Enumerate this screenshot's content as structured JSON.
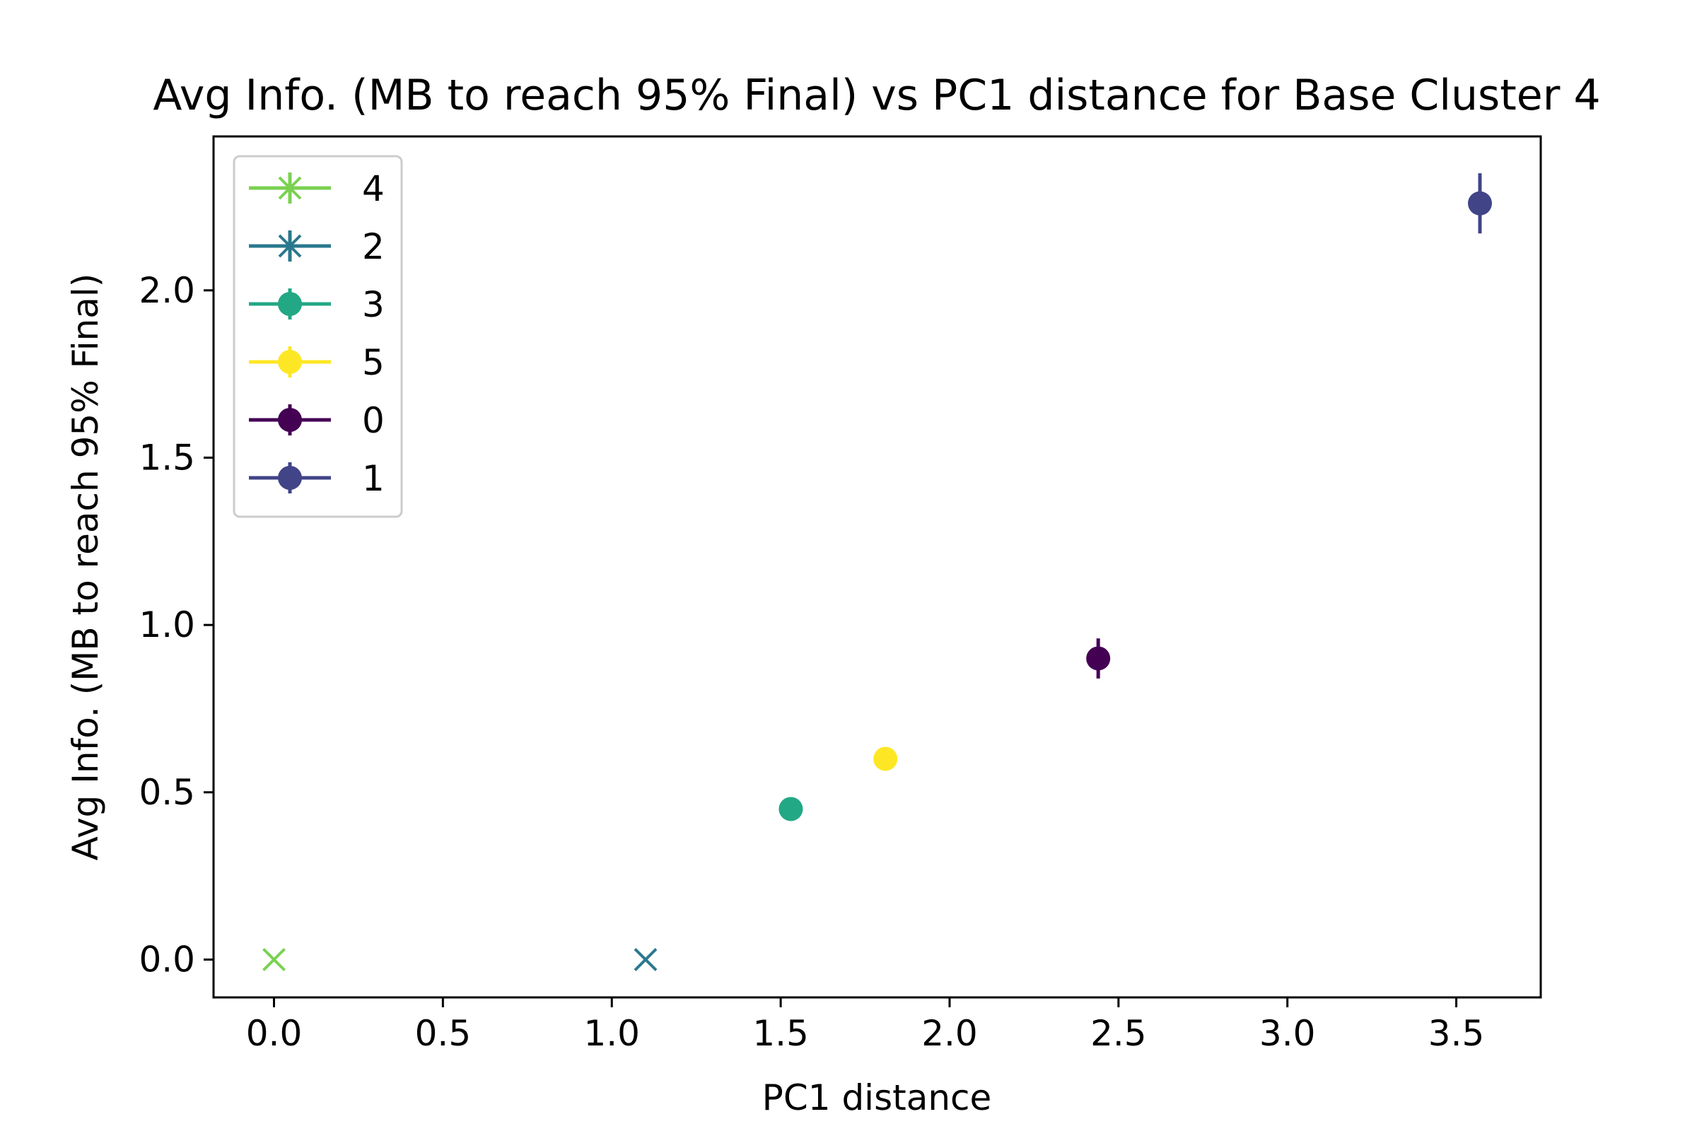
{
  "chart_data": {
    "type": "scatter",
    "title": "Avg Info. (MB to reach 95% Final) vs PC1 distance for Base Cluster 4",
    "xlabel": "PC1 distance",
    "ylabel": "Avg Info. (MB to reach 95% Final)",
    "xlim": [
      -0.179,
      3.75
    ],
    "ylim": [
      -0.113,
      2.46
    ],
    "xticks": [
      "0.0",
      "0.5",
      "1.0",
      "1.5",
      "2.0",
      "2.5",
      "3.0",
      "3.5"
    ],
    "yticks": [
      "0.0",
      "0.5",
      "1.0",
      "1.5",
      "2.0"
    ],
    "grid": false,
    "legend_position": "upper-left",
    "series": [
      {
        "name": "4",
        "color": "#7ad151",
        "marker": "x",
        "x": 0.0,
        "y": 0.0,
        "err": 0.0
      },
      {
        "name": "2",
        "color": "#2a788e",
        "marker": "x",
        "x": 1.1,
        "y": 0.0,
        "err": 0.0
      },
      {
        "name": "3",
        "color": "#22a884",
        "marker": "o",
        "x": 1.53,
        "y": 0.45,
        "err": 0.0
      },
      {
        "name": "5",
        "color": "#fde725",
        "marker": "o",
        "x": 1.81,
        "y": 0.6,
        "err": 0.0
      },
      {
        "name": "0",
        "color": "#440154",
        "marker": "o",
        "x": 2.44,
        "y": 0.9,
        "err": 0.06
      },
      {
        "name": "1",
        "color": "#414487",
        "marker": "o",
        "x": 3.57,
        "y": 2.26,
        "err": 0.09
      }
    ]
  }
}
